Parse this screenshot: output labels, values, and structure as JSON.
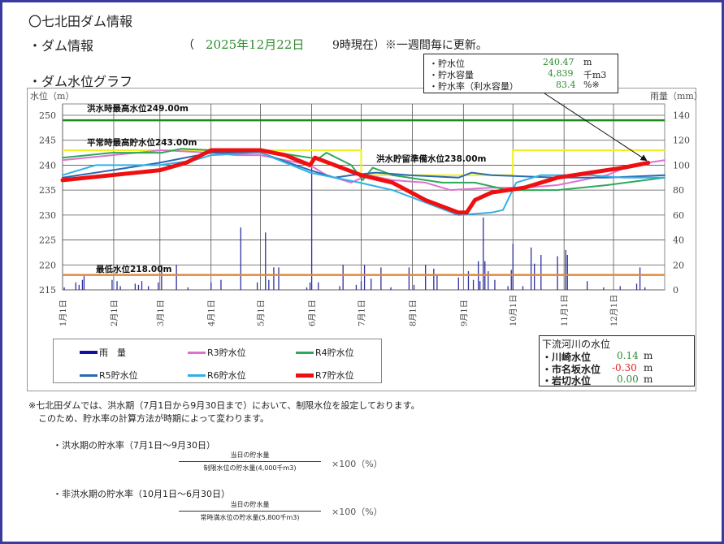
{
  "header": {
    "title": "〇七北田ダム情報",
    "dam_info_label": "・ダム情報",
    "paren_open": "（",
    "date": "2025年12月22日",
    "time_note": "9時現在）※一週間毎に更新。",
    "graph_label": "・ダム水位グラフ"
  },
  "current": {
    "rows": [
      {
        "label": "・貯水位",
        "value": "240.47",
        "unit": "m"
      },
      {
        "label": "・貯水容量",
        "value": "4,839",
        "unit": "千m3"
      },
      {
        "label": "・貯水率（利水容量）",
        "value": "83.4",
        "unit": "%※"
      }
    ]
  },
  "river": {
    "title": "下流河川の水位",
    "rows": [
      {
        "label": "・川崎水位",
        "value": "0.14",
        "unit": "m",
        "color": "#2e8b2e"
      },
      {
        "label": "・市名坂水位",
        "value": "-0.30",
        "unit": "m",
        "color": "#e02020"
      },
      {
        "label": "・岩切水位",
        "value": "0.00",
        "unit": "m",
        "color": "#2e8b2e"
      }
    ]
  },
  "notes": {
    "line1": "※七北田ダムでは、洪水期（7月1日から9月30日まで）において、制限水位を設定しております。",
    "line2": "このため、貯水率の計算方法が時期によって変わります。",
    "flood_title": "・洪水期の貯水率（7月1日～9月30日）",
    "flood_num": "当日の貯水量",
    "flood_den": "制限水位の貯水量(4,000千m3)",
    "flood_mult": "×100（%）",
    "nonflood_title": "・非洪水期の貯水率（10月1日～6月30日）",
    "nonflood_num": "当日の貯水量",
    "nonflood_den": "常時満水位の貯水量(5,800千m3)",
    "nonflood_mult": "×100（%）"
  },
  "chart_data": {
    "type": "line",
    "ylabel": "水位（m）",
    "y2label": "雨量（mm）",
    "ylim": [
      215,
      250
    ],
    "yticks": [
      215,
      220,
      225,
      230,
      235,
      240,
      245,
      250
    ],
    "y2lim": [
      0,
      140
    ],
    "y2ticks": [
      0,
      20,
      40,
      60,
      80,
      100,
      120,
      140
    ],
    "xlim_day": [
      0,
      365
    ],
    "grid": true,
    "legend_placement": "bottom-left",
    "xticks": [
      {
        "day": 0,
        "label": "1月1日"
      },
      {
        "day": 31,
        "label": "2月1日"
      },
      {
        "day": 59,
        "label": "3月1日"
      },
      {
        "day": 90,
        "label": "4月1日"
      },
      {
        "day": 120,
        "label": "5月1日"
      },
      {
        "day": 151,
        "label": "6月1日"
      },
      {
        "day": 181,
        "label": "7月1日"
      },
      {
        "day": 212,
        "label": "8月1日"
      },
      {
        "day": 243,
        "label": "9月1日"
      },
      {
        "day": 273,
        "label": "10月1日"
      },
      {
        "day": 304,
        "label": "11月1日"
      },
      {
        "day": 334,
        "label": "12月1日"
      }
    ],
    "reference_lines": [
      {
        "label": "洪水時最高水位249.00m",
        "value": 249,
        "color": "#1e8a1e"
      },
      {
        "label": "最低水位218.00m",
        "value": 218,
        "color": "#e08a3c"
      }
    ],
    "control_line": {
      "color": "#f0f020",
      "labels": [
        "平常時最高貯水位243.00m",
        "洪水貯留準備水位238.00m"
      ],
      "points": [
        [
          0,
          243
        ],
        [
          181,
          243
        ],
        [
          181,
          238
        ],
        [
          273,
          238
        ],
        [
          273,
          243
        ],
        [
          365,
          243
        ]
      ]
    },
    "series": [
      {
        "name": "R3貯水位",
        "color": "#e070d0",
        "width": 2,
        "points": [
          [
            0,
            241
          ],
          [
            60,
            243
          ],
          [
            90,
            242.5
          ],
          [
            105,
            242
          ],
          [
            120,
            242
          ],
          [
            150,
            240
          ],
          [
            160,
            238
          ],
          [
            175,
            236.5
          ],
          [
            185,
            238
          ],
          [
            200,
            237
          ],
          [
            220,
            236.5
          ],
          [
            235,
            235
          ],
          [
            260,
            235.5
          ],
          [
            280,
            235.5
          ],
          [
            300,
            236
          ],
          [
            330,
            238
          ],
          [
            345,
            240
          ],
          [
            365,
            241
          ]
        ]
      },
      {
        "name": "R4貯水位",
        "color": "#2ea85a",
        "width": 2,
        "points": [
          [
            0,
            241.5
          ],
          [
            30,
            242.5
          ],
          [
            60,
            242.5
          ],
          [
            72,
            243.3
          ],
          [
            90,
            243
          ],
          [
            120,
            243
          ],
          [
            150,
            241.5
          ],
          [
            155,
            241.3
          ],
          [
            160,
            242.5
          ],
          [
            175,
            240
          ],
          [
            182,
            237
          ],
          [
            188,
            239.5
          ],
          [
            200,
            238
          ],
          [
            230,
            236.5
          ],
          [
            250,
            236.5
          ],
          [
            270,
            235
          ],
          [
            300,
            235
          ],
          [
            330,
            236
          ],
          [
            365,
            237.5
          ]
        ]
      },
      {
        "name": "R5貯水位",
        "color": "#2a6ab0",
        "width": 2,
        "points": [
          [
            0,
            237.5
          ],
          [
            30,
            239
          ],
          [
            59,
            240.5
          ],
          [
            90,
            242.5
          ],
          [
            120,
            242.5
          ],
          [
            150,
            239
          ],
          [
            165,
            237.5
          ],
          [
            175,
            238
          ],
          [
            190,
            238.5
          ],
          [
            210,
            238
          ],
          [
            240,
            237.5
          ],
          [
            248,
            238.5
          ],
          [
            260,
            238
          ],
          [
            300,
            237.5
          ],
          [
            330,
            237.5
          ],
          [
            365,
            238
          ]
        ]
      },
      {
        "name": "R6貯水位",
        "color": "#30b0e8",
        "width": 2,
        "points": [
          [
            0,
            238
          ],
          [
            20,
            240
          ],
          [
            59,
            240
          ],
          [
            80,
            241
          ],
          [
            90,
            242
          ],
          [
            120,
            242.5
          ],
          [
            150,
            238.5
          ],
          [
            180,
            236.5
          ],
          [
            200,
            235
          ],
          [
            220,
            232.5
          ],
          [
            240,
            230
          ],
          [
            260,
            230.5
          ],
          [
            267,
            231
          ],
          [
            275,
            236.5
          ],
          [
            290,
            238
          ],
          [
            320,
            238
          ],
          [
            340,
            237.5
          ],
          [
            365,
            237.5
          ]
        ]
      },
      {
        "name": "R7貯水位",
        "color": "#ee1010",
        "width": 5,
        "points": [
          [
            0,
            237
          ],
          [
            30,
            238
          ],
          [
            59,
            239
          ],
          [
            75,
            240.5
          ],
          [
            90,
            243
          ],
          [
            120,
            243
          ],
          [
            135,
            242
          ],
          [
            150,
            240
          ],
          [
            153,
            241.5
          ],
          [
            181,
            238
          ],
          [
            200,
            236.5
          ],
          [
            220,
            233
          ],
          [
            240,
            230.5
          ],
          [
            245,
            230.5
          ],
          [
            250,
            233
          ],
          [
            260,
            234.5
          ],
          [
            280,
            235.5
          ],
          [
            300,
            237.5
          ],
          [
            320,
            238.5
          ],
          [
            340,
            239.5
          ],
          [
            355,
            240.47
          ]
        ]
      }
    ],
    "rain": {
      "name": "雨　量",
      "color": "#3030a0",
      "values": [
        [
          1,
          2
        ],
        [
          8,
          6
        ],
        [
          10,
          4
        ],
        [
          12,
          8
        ],
        [
          13,
          11
        ],
        [
          30,
          8
        ],
        [
          33,
          7
        ],
        [
          35,
          3
        ],
        [
          44,
          5
        ],
        [
          46,
          4
        ],
        [
          48,
          7
        ],
        [
          52,
          3
        ],
        [
          58,
          6
        ],
        [
          60,
          20
        ],
        [
          69,
          20
        ],
        [
          76,
          2
        ],
        [
          90,
          6
        ],
        [
          96,
          8
        ],
        [
          108,
          50
        ],
        [
          118,
          6
        ],
        [
          123,
          46
        ],
        [
          125,
          8
        ],
        [
          128,
          18
        ],
        [
          131,
          18
        ],
        [
          148,
          2
        ],
        [
          150,
          6
        ],
        [
          151,
          98
        ],
        [
          155,
          6
        ],
        [
          168,
          3
        ],
        [
          170,
          20
        ],
        [
          178,
          4
        ],
        [
          181,
          7
        ],
        [
          183,
          20
        ],
        [
          187,
          9
        ],
        [
          193,
          18
        ],
        [
          199,
          2
        ],
        [
          210,
          18
        ],
        [
          213,
          4
        ],
        [
          220,
          20
        ],
        [
          225,
          17
        ],
        [
          227,
          12
        ],
        [
          240,
          10
        ],
        [
          246,
          15
        ],
        [
          249,
          8
        ],
        [
          252,
          23
        ],
        [
          253,
          7
        ],
        [
          255,
          58
        ],
        [
          256,
          23
        ],
        [
          258,
          15
        ],
        [
          262,
          8
        ],
        [
          270,
          3
        ],
        [
          272,
          16
        ],
        [
          273,
          37
        ],
        [
          279,
          3
        ],
        [
          284,
          34
        ],
        [
          286,
          21
        ],
        [
          290,
          28
        ],
        [
          300,
          27
        ],
        [
          305,
          32
        ],
        [
          306,
          28
        ],
        [
          318,
          7
        ],
        [
          328,
          2
        ],
        [
          338,
          3
        ],
        [
          348,
          5
        ],
        [
          350,
          18
        ],
        [
          353,
          2
        ]
      ]
    }
  }
}
